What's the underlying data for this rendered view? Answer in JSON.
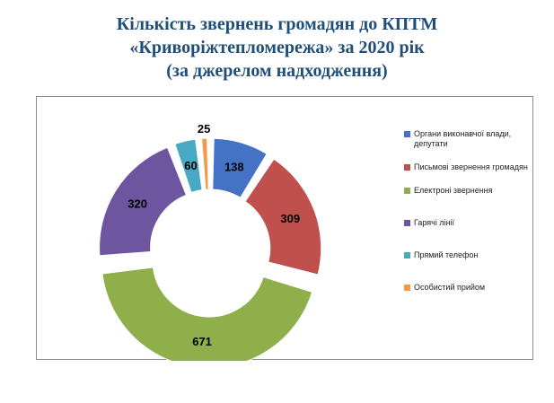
{
  "title_lines": [
    "Кількість  звернень  громадян до КПТМ",
    "«Криворіжтепломережа»  за 2020 рік",
    "(за джерелом надходження)"
  ],
  "chart_data": {
    "type": "pie",
    "variant": "exploded-doughnut",
    "title": "Кількість звернень громадян до КПТМ «Криворіжтепломережа» за 2020 рік (за джерелом надходження)",
    "legend_position": "right",
    "categories": [
      "Органи виконавчої влади, депутати",
      "Письмові звернення громадян",
      "Електроні звернення",
      "Гарячі лінії",
      "Прямий телефон",
      "Особистий прийом"
    ],
    "values": [
      138,
      309,
      671,
      320,
      60,
      25
    ],
    "colors": [
      "#4472c4",
      "#c0504d",
      "#8faf4a",
      "#6e55a0",
      "#48a9c5",
      "#f39a4a"
    ]
  }
}
